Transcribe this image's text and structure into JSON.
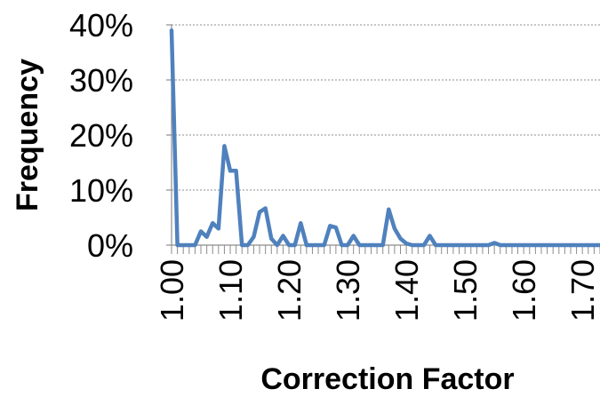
{
  "chart_data": {
    "type": "line",
    "title": "",
    "xlabel": "Correction Factor",
    "ylabel": "Frequency",
    "xlim": [
      1.0,
      1.73
    ],
    "ylim": [
      0,
      40
    ],
    "y_ticks": [
      "0%",
      "10%",
      "20%",
      "30%",
      "40%"
    ],
    "x_ticks": [
      "1.00",
      "1.10",
      "1.20",
      "1.30",
      "1.40",
      "1.50",
      "1.60",
      "1.70"
    ],
    "grid": "horizontal-dotted",
    "legend": "none",
    "series": [
      {
        "color": "#4f81bd",
        "x": [
          1.0,
          1.01,
          1.02,
          1.03,
          1.04,
          1.05,
          1.06,
          1.07,
          1.08,
          1.09,
          1.1,
          1.11,
          1.12,
          1.13,
          1.14,
          1.15,
          1.16,
          1.17,
          1.18,
          1.19,
          1.2,
          1.21,
          1.22,
          1.23,
          1.24,
          1.25,
          1.26,
          1.27,
          1.28,
          1.29,
          1.3,
          1.31,
          1.32,
          1.33,
          1.34,
          1.35,
          1.36,
          1.37,
          1.38,
          1.39,
          1.4,
          1.41,
          1.42,
          1.43,
          1.44,
          1.45,
          1.46,
          1.47,
          1.48,
          1.49,
          1.5,
          1.51,
          1.52,
          1.53,
          1.54,
          1.55,
          1.56,
          1.57,
          1.58,
          1.59,
          1.6,
          1.61,
          1.62,
          1.63,
          1.64,
          1.65,
          1.66,
          1.67,
          1.68,
          1.69,
          1.7,
          1.71,
          1.72,
          1.73
        ],
        "y": [
          39,
          0,
          0,
          0,
          0,
          2.5,
          1.5,
          4,
          3,
          18,
          13.5,
          13.5,
          0,
          0,
          1.5,
          6,
          6.7,
          1.2,
          0,
          1.7,
          0,
          0,
          4,
          0,
          0,
          0,
          0,
          3.5,
          3.2,
          0,
          0,
          1.7,
          0,
          0,
          0,
          0,
          0,
          6.5,
          3,
          1.2,
          0.3,
          0,
          0,
          0,
          1.7,
          0,
          0,
          0,
          0,
          0,
          0,
          0,
          0,
          0,
          0,
          0.4,
          0,
          0,
          0,
          0,
          0,
          0,
          0,
          0,
          0,
          0,
          0,
          0,
          0,
          0,
          0,
          0,
          0,
          0
        ]
      }
    ]
  }
}
